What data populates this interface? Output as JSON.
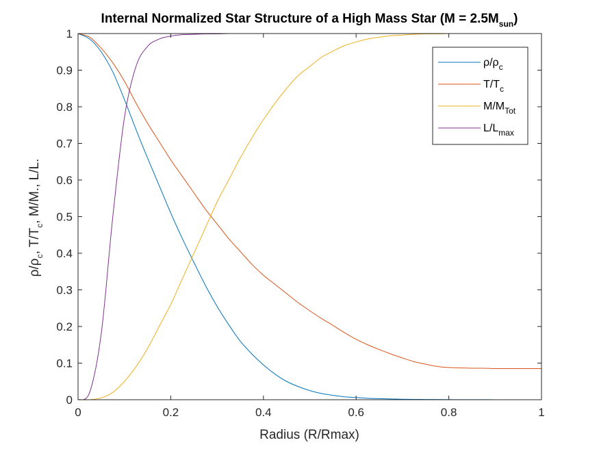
{
  "chart_data": {
    "type": "line",
    "title": {
      "main": "Internal Normalized Star Structure of a High Mass Star (M = 2.5M",
      "sub": "sun",
      "end": ")"
    },
    "xlabel": "Radius (R/Rmax)",
    "ylabel": {
      "p1": "ρ/ρ",
      "s1": "c",
      "p2": ", T/T",
      "s2": "c",
      "p3": ", M/M., L/L."
    },
    "xlim": [
      0,
      1
    ],
    "ylim": [
      0,
      1
    ],
    "xticks": [
      "0",
      "0.2",
      "0.4",
      "0.6",
      "0.8",
      "1"
    ],
    "yticks": [
      "0",
      "0.1",
      "0.2",
      "0.3",
      "0.4",
      "0.5",
      "0.6",
      "0.7",
      "0.8",
      "0.9",
      "1"
    ],
    "grid": false,
    "legend_position": "top-right",
    "x": [
      0,
      0.025,
      0.05,
      0.075,
      0.1,
      0.125,
      0.15,
      0.175,
      0.2,
      0.225,
      0.25,
      0.275,
      0.3,
      0.325,
      0.35,
      0.375,
      0.4,
      0.425,
      0.45,
      0.475,
      0.5,
      0.525,
      0.55,
      0.575,
      0.6,
      0.625,
      0.65,
      0.675,
      0.7,
      0.725,
      0.75,
      0.775,
      0.8,
      0.825,
      0.85,
      0.875,
      0.9,
      0.925,
      0.95,
      0.975,
      1
    ],
    "series": [
      {
        "label_main": "ρ/ρ",
        "label_sub": "c",
        "color": "#0072BD",
        "values": [
          1.0,
          0.985,
          0.95,
          0.895,
          0.82,
          0.738,
          0.66,
          0.585,
          0.51,
          0.44,
          0.375,
          0.312,
          0.255,
          0.205,
          0.16,
          0.125,
          0.095,
          0.07,
          0.05,
          0.036,
          0.025,
          0.017,
          0.012,
          0.008,
          0.006,
          0.004,
          0.003,
          0.002,
          0.0015,
          0.001,
          0.0008,
          0.0006,
          0.0004,
          0.0003,
          0.0002,
          0.0002,
          0.0001,
          0.0001,
          0.0001,
          0.0,
          0.0
        ]
      },
      {
        "label_main": "T/T",
        "label_sub": "c",
        "color": "#D95319",
        "values": [
          1.0,
          0.99,
          0.96,
          0.92,
          0.87,
          0.81,
          0.755,
          0.705,
          0.655,
          0.61,
          0.565,
          0.52,
          0.48,
          0.44,
          0.405,
          0.37,
          0.34,
          0.315,
          0.29,
          0.265,
          0.243,
          0.222,
          0.203,
          0.183,
          0.165,
          0.15,
          0.137,
          0.125,
          0.114,
          0.104,
          0.097,
          0.091,
          0.088,
          0.087,
          0.086,
          0.086,
          0.085,
          0.085,
          0.085,
          0.085,
          0.085
        ]
      },
      {
        "label_main": "M/M",
        "label_sub": "Tot",
        "color": "#EDB120",
        "values": [
          0.0,
          0.0,
          0.005,
          0.02,
          0.05,
          0.09,
          0.14,
          0.2,
          0.26,
          0.33,
          0.4,
          0.47,
          0.54,
          0.6,
          0.66,
          0.715,
          0.765,
          0.81,
          0.85,
          0.885,
          0.91,
          0.935,
          0.952,
          0.967,
          0.977,
          0.985,
          0.99,
          0.994,
          0.996,
          0.998,
          0.999,
          0.999,
          1.0,
          1.0,
          1.0,
          1.0,
          1.0,
          1.0,
          1.0,
          1.0,
          1.0
        ]
      },
      {
        "label_main": "L/L",
        "label_sub": "max",
        "color": "#7E2F8E",
        "values": [
          0.0,
          0.02,
          0.18,
          0.5,
          0.77,
          0.91,
          0.965,
          0.985,
          0.993,
          0.997,
          0.998,
          0.999,
          0.999,
          1.0,
          1.0,
          1.0,
          1.0,
          1.0,
          1.0,
          1.0,
          1.0,
          1.0,
          1.0,
          1.0,
          1.0,
          1.0,
          1.0,
          1.0,
          1.0,
          1.0,
          1.0,
          1.0,
          1.0,
          1.0,
          1.0,
          1.0,
          1.0,
          1.0,
          1.0,
          1.0,
          1.0
        ]
      }
    ]
  }
}
